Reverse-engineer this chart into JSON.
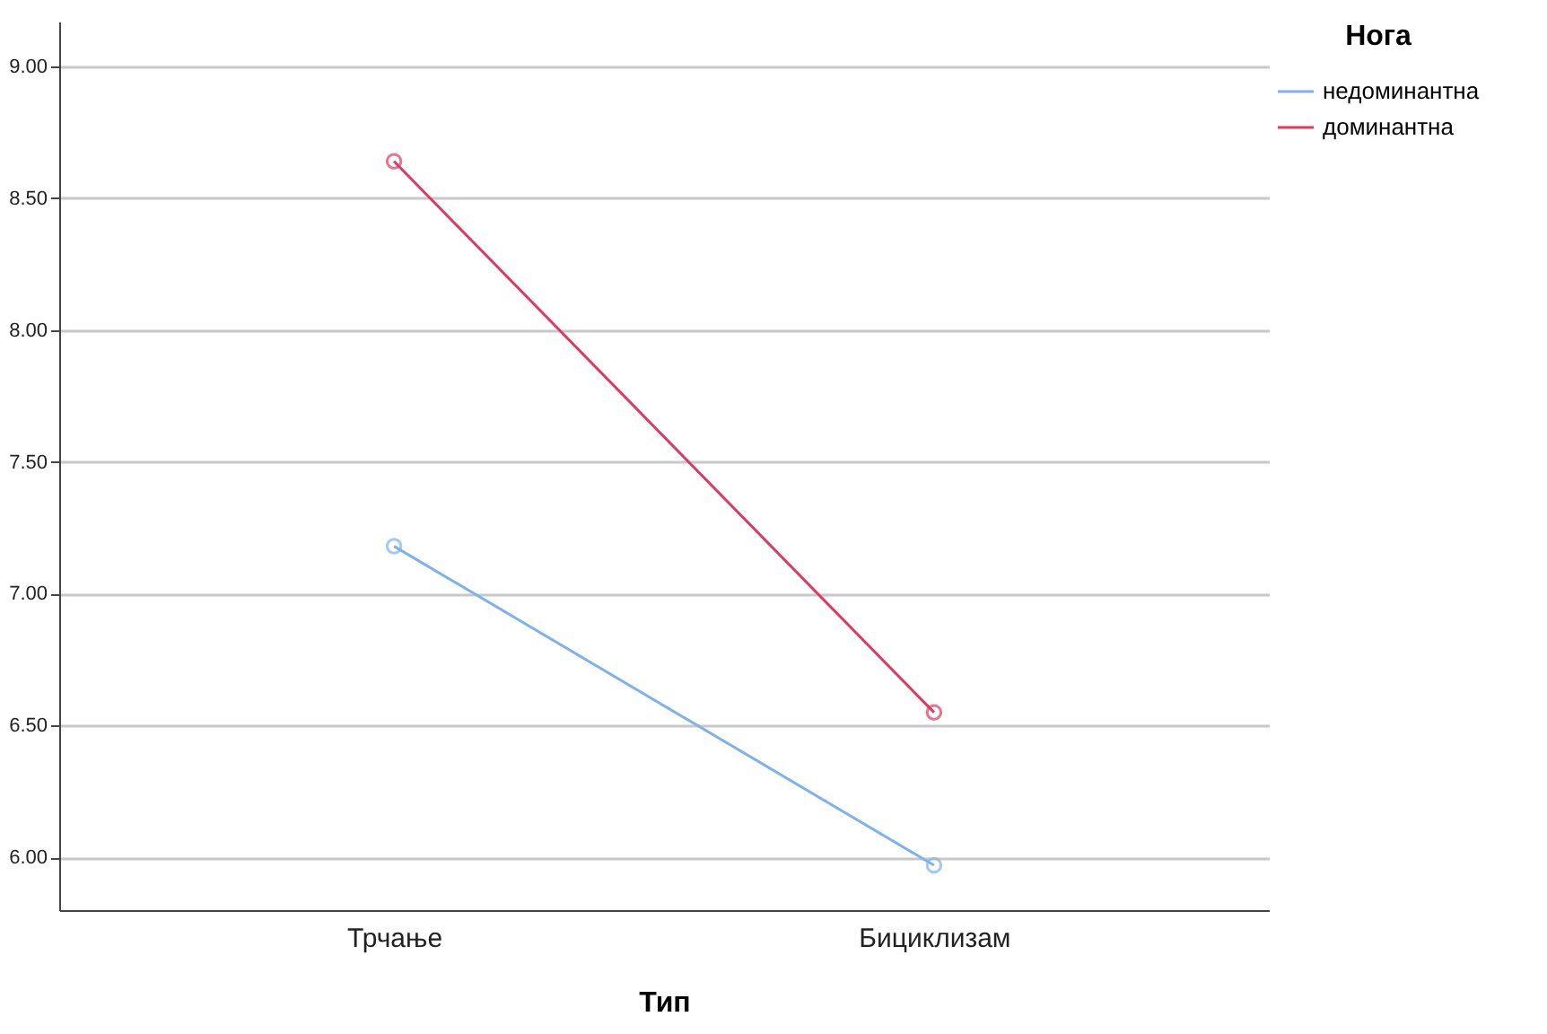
{
  "chart_data": {
    "type": "line",
    "xlabel": "Тип",
    "legend_title": "Нога",
    "categories": [
      "Трчање",
      "Бициклизам"
    ],
    "series": [
      {
        "name": "недоминантна",
        "color": "#7fb2ec",
        "values": [
          7.18,
          5.97
        ]
      },
      {
        "name": "доминантна",
        "color": "#e0385f",
        "values": [
          8.64,
          6.55
        ]
      }
    ],
    "ylim": [
      5.8,
      9.17
    ],
    "yticks": [
      {
        "value": 6,
        "label": "6.00"
      },
      {
        "value": 6.5,
        "label": "6.50"
      },
      {
        "value": 7,
        "label": "7.00"
      },
      {
        "value": 7.5,
        "label": "7.50"
      },
      {
        "value": 8,
        "label": "8.00"
      },
      {
        "value": 8.5,
        "label": "8.50"
      },
      {
        "value": 9,
        "label": "9.00"
      }
    ],
    "grid": "y",
    "legend": "top right",
    "marker": "circle",
    "line_style": "solid"
  }
}
